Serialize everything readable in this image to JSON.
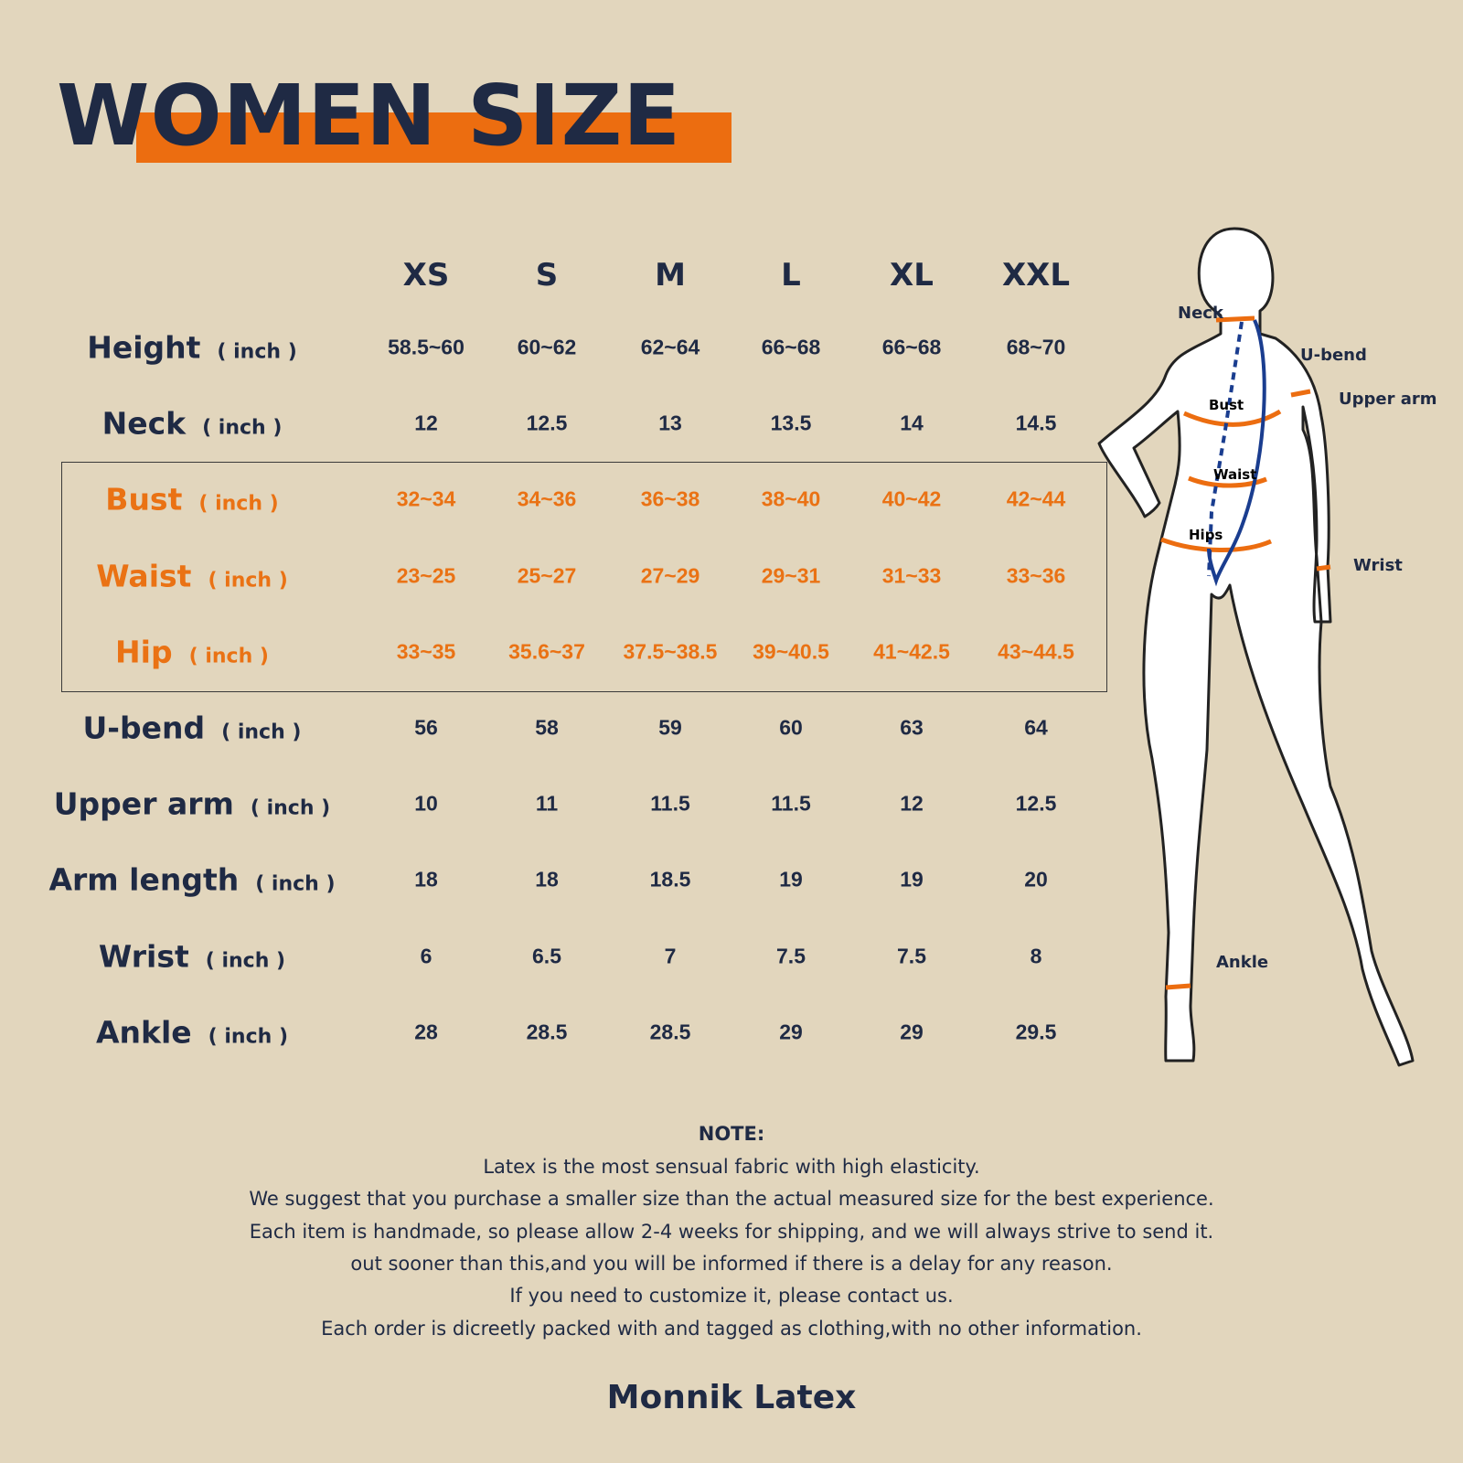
{
  "title": "WOMEN SIZE",
  "colors": {
    "background": "#e2d6bd",
    "accent": "#ec6d10",
    "text": "#1f2a44",
    "highlight": "#ea7214"
  },
  "table": {
    "sizes": [
      "XS",
      "S",
      "M",
      "L",
      "XL",
      "XXL"
    ],
    "unit": "( inch )",
    "rows": [
      {
        "name": "Height",
        "values": [
          "58.5~60",
          "60~62",
          "62~64",
          "66~68",
          "66~68",
          "68~70"
        ]
      },
      {
        "name": "Neck",
        "values": [
          "12",
          "12.5",
          "13",
          "13.5",
          "14",
          "14.5"
        ]
      },
      {
        "name": "Bust",
        "highlight": true,
        "values": [
          "32~34",
          "34~36",
          "36~38",
          "38~40",
          "40~42",
          "42~44"
        ]
      },
      {
        "name": "Waist",
        "highlight": true,
        "values": [
          "23~25",
          "25~27",
          "27~29",
          "29~31",
          "31~33",
          "33~36"
        ]
      },
      {
        "name": "Hip",
        "highlight": true,
        "values": [
          "33~35",
          "35.6~37",
          "37.5~38.5",
          "39~40.5",
          "41~42.5",
          "43~44.5"
        ]
      },
      {
        "name": "U-bend",
        "values": [
          "56",
          "58",
          "59",
          "60",
          "63",
          "64"
        ]
      },
      {
        "name": "Upper arm",
        "values": [
          "10",
          "11",
          "11.5",
          "11.5",
          "12",
          "12.5"
        ]
      },
      {
        "name": "Arm length",
        "values": [
          "18",
          "18",
          "18.5",
          "19",
          "19",
          "20"
        ]
      },
      {
        "name": "Wrist",
        "values": [
          "6",
          "6.5",
          "7",
          "7.5",
          "7.5",
          "8"
        ]
      },
      {
        "name": "Ankle",
        "values": [
          "28",
          "28.5",
          "28.5",
          "29",
          "29",
          "29.5"
        ]
      }
    ]
  },
  "figure": {
    "labels": {
      "neck": "Neck",
      "ubend": "U-bend",
      "upper_arm": "Upper arm",
      "bust": "Bust",
      "waist": "Waist",
      "hips": "Hips",
      "wrist": "Wrist",
      "ankle": "Ankle"
    }
  },
  "note": {
    "heading": "NOTE:",
    "lines": [
      "Latex is the most sensual fabric with high elasticity.",
      "We suggest that you purchase a smaller size than the actual measured size for the best experience.",
      "Each item is handmade, so please allow 2-4 weeks for shipping, and we will always strive to send it.",
      "out sooner than this,and you will be informed if there is a delay for any reason.",
      "If you need to customize it, please contact us.",
      "Each order is dicreetly packed with and tagged as clothing,with no other information."
    ]
  },
  "brand": "Monnik Latex"
}
